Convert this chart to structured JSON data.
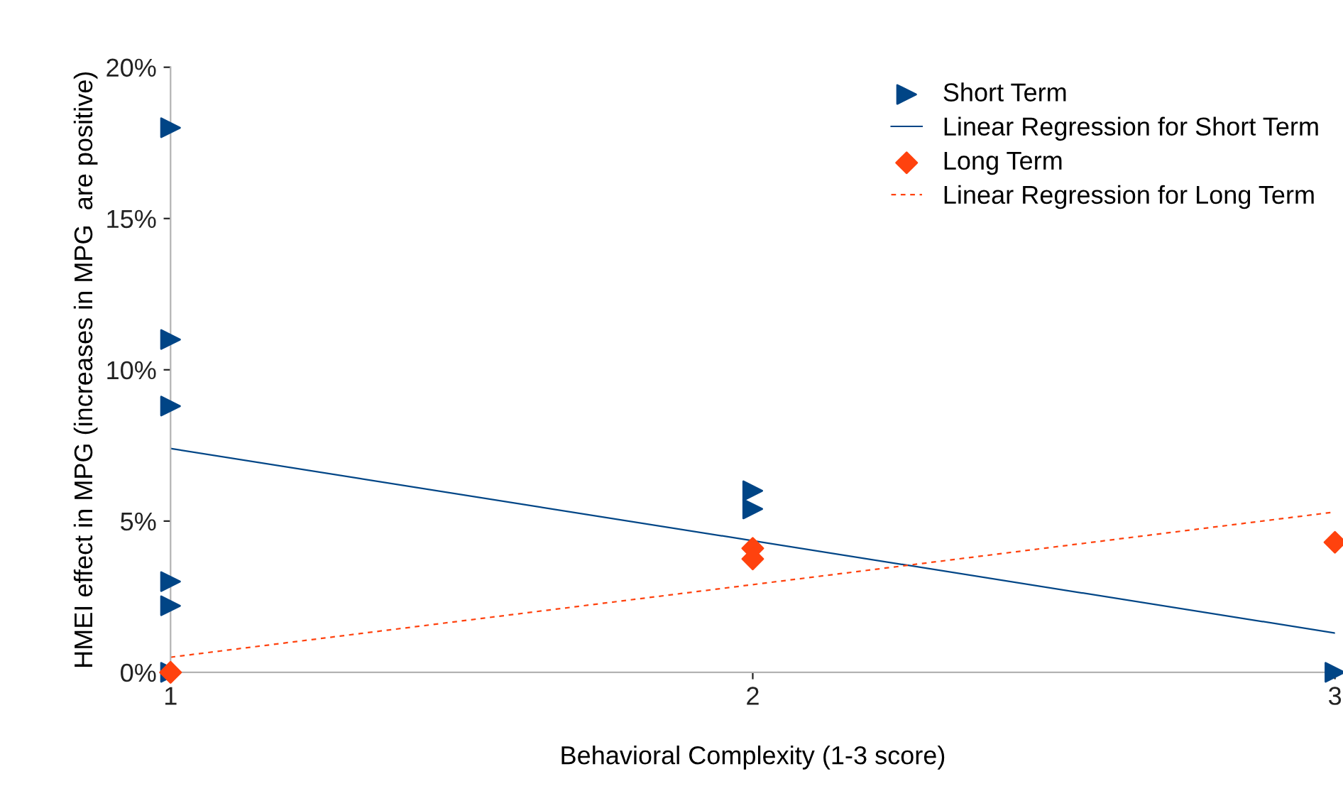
{
  "chart_data": {
    "type": "scatter",
    "xlabel": "Behavioral Complexity (1-3 score)",
    "ylabel": "HMEI effect in MPG (increases in MPG  are positive)",
    "xlim": [
      1,
      3
    ],
    "xticks": [
      1,
      2,
      3
    ],
    "ylim": [
      0,
      20
    ],
    "yticks": [
      {
        "value": 0,
        "label": "0%"
      },
      {
        "value": 5,
        "label": "5%"
      },
      {
        "value": 10,
        "label": "10%"
      },
      {
        "value": 15,
        "label": "15%"
      },
      {
        "value": 20,
        "label": "20%"
      }
    ],
    "grid": false,
    "legend": "top right",
    "series": [
      {
        "name": "Short Term",
        "marker": "triangle",
        "color": "#004586",
        "x": [
          1,
          1,
          1,
          1,
          1,
          1,
          2,
          2,
          3
        ],
        "values": [
          18,
          11,
          8.8,
          3,
          2.2,
          0,
          6,
          5.4,
          0
        ]
      },
      {
        "name": "Linear Regression for Short Term",
        "type": "line",
        "marker": "none",
        "line_style": "solid",
        "color": "#004586",
        "x": [
          1,
          3
        ],
        "values": [
          7.4,
          1.3
        ]
      },
      {
        "name": "Long Term",
        "marker": "diamond",
        "color": "#ff420e",
        "x": [
          1,
          2,
          2,
          3
        ],
        "values": [
          0,
          4.1,
          3.75,
          4.3
        ]
      },
      {
        "name": "Linear Regression for Long Term",
        "type": "line",
        "marker": "none",
        "line_style": "dashed",
        "color": "#ff420e",
        "x": [
          1,
          3
        ],
        "values": [
          0.5,
          5.3
        ]
      }
    ]
  }
}
